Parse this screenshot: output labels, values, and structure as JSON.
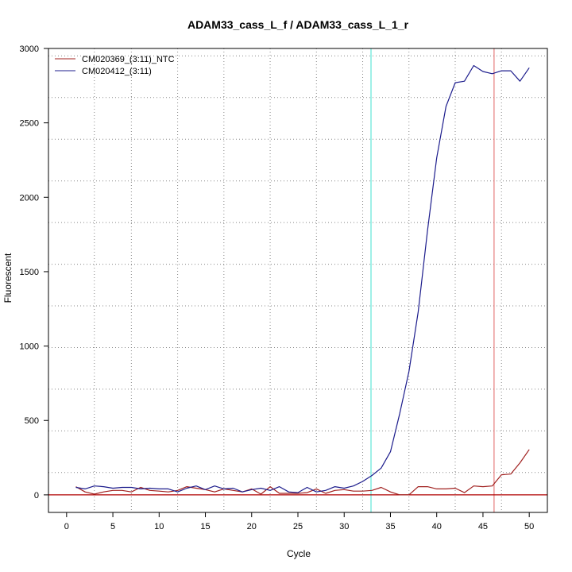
{
  "chart_data": {
    "type": "line",
    "title": "ADAM33_cass_L_f / ADAM33_cass_L_1_r",
    "xlabel": "Cycle",
    "ylabel": "Fluorescent",
    "xlim": [
      -1.96,
      51.96
    ],
    "ylim": [
      -118,
      3000
    ],
    "x_ticks": [
      0,
      5,
      10,
      15,
      20,
      25,
      30,
      35,
      40,
      45,
      50
    ],
    "y_ticks": [
      0,
      500,
      1000,
      1500,
      2000,
      2500,
      3000
    ],
    "grid": true,
    "grid_x": [
      3,
      7,
      12,
      17,
      22,
      27,
      32,
      37,
      42,
      47
    ],
    "grid_y": [
      150,
      430,
      710,
      990,
      1270,
      1550,
      1830,
      2110,
      2390,
      2670,
      2950
    ],
    "legend_position": "top-left",
    "series": [
      {
        "name": "CM020369_(3:11)_NTC",
        "color": "#a0201f",
        "x": [
          1,
          2,
          3,
          4,
          5,
          6,
          7,
          8,
          9,
          10,
          11,
          12,
          13,
          14,
          15,
          16,
          17,
          18,
          19,
          20,
          21,
          22,
          23,
          24,
          25,
          26,
          27,
          28,
          29,
          30,
          31,
          32,
          33,
          34,
          35,
          36,
          37,
          38,
          39,
          40,
          41,
          42,
          43,
          44,
          45,
          46,
          47,
          48,
          49,
          50
        ],
        "y": [
          55,
          20,
          5,
          20,
          30,
          30,
          20,
          50,
          30,
          25,
          20,
          30,
          55,
          45,
          35,
          20,
          40,
          30,
          20,
          40,
          5,
          55,
          10,
          10,
          10,
          15,
          40,
          10,
          30,
          35,
          25,
          25,
          30,
          50,
          20,
          0,
          0,
          55,
          55,
          40,
          40,
          45,
          15,
          60,
          55,
          60,
          135,
          140,
          215,
          305
        ]
      },
      {
        "name": "CM020412_(3:11)",
        "color": "#1c1c8c",
        "x": [
          1,
          2,
          3,
          4,
          5,
          6,
          7,
          8,
          9,
          10,
          11,
          12,
          13,
          14,
          15,
          16,
          17,
          18,
          19,
          20,
          21,
          22,
          23,
          24,
          25,
          26,
          27,
          28,
          29,
          30,
          31,
          32,
          33,
          34,
          35,
          36,
          37,
          38,
          39,
          40,
          41,
          42,
          43,
          44,
          45,
          46,
          47,
          48,
          49,
          50
        ],
        "y": [
          50,
          40,
          60,
          55,
          45,
          50,
          50,
          40,
          45,
          40,
          40,
          20,
          45,
          60,
          35,
          60,
          40,
          45,
          20,
          35,
          45,
          30,
          55,
          20,
          15,
          50,
          20,
          30,
          55,
          45,
          60,
          90,
          130,
          180,
          290,
          545,
          830,
          1230,
          1775,
          2265,
          2610,
          2770,
          2780,
          2885,
          2845,
          2830,
          2850,
          2850,
          2780,
          2870
        ]
      }
    ],
    "annotations": {
      "threshold": 0,
      "ct_line_x": 32.9,
      "end_line_x": 46.2
    }
  },
  "colors": {
    "ct_line": "#40e0d0",
    "end_line": "#e06060",
    "threshold": "#b00000",
    "grid": "#888888"
  }
}
